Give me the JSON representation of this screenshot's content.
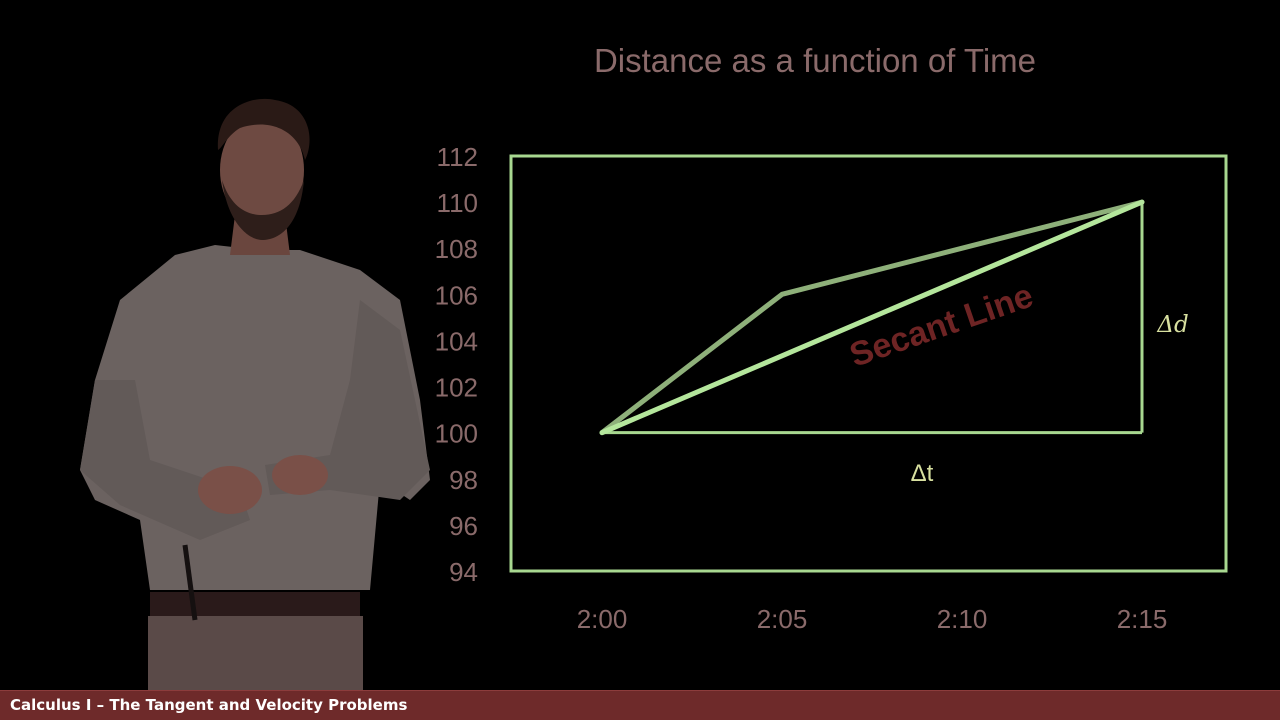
{
  "chart_data": {
    "type": "line",
    "title": "Distance as a function of Time",
    "xlabel": "",
    "ylabel": "",
    "x_ticks": [
      "2:00",
      "2:05",
      "2:10",
      "2:15"
    ],
    "y_ticks": [
      94,
      96,
      98,
      100,
      102,
      104,
      106,
      108,
      110,
      112
    ],
    "ylim": [
      94,
      112
    ],
    "xlim_minutes": [
      0,
      20
    ],
    "grid": false,
    "series": [
      {
        "points": [
          {
            "x": "2:00",
            "y": 100
          },
          {
            "x": "2:05",
            "y": 106
          },
          {
            "x": "2:15",
            "y": 110
          }
        ]
      }
    ],
    "secant_line": {
      "label": "Secant Line",
      "from": {
        "x": "2:00",
        "y": 100
      },
      "to": {
        "x": "2:15",
        "y": 110
      }
    },
    "delta_t_label": "Δt",
    "delta_d_label": "Δd"
  },
  "footer": {
    "course_title": "Calculus I – The Tangent and Velocity Problems"
  },
  "colors": {
    "background": "#000000",
    "axis_text": "#8a6a6a",
    "frame": "#a8d890",
    "curve": "#8eb07a",
    "secant": "#b4e69c",
    "secant_label": "#6e2424",
    "delta_label": "#d8e0a0",
    "footer_bg": "#6e2a2a",
    "person_shirt": "#6c6260",
    "person_skin": "#6e4a42"
  }
}
